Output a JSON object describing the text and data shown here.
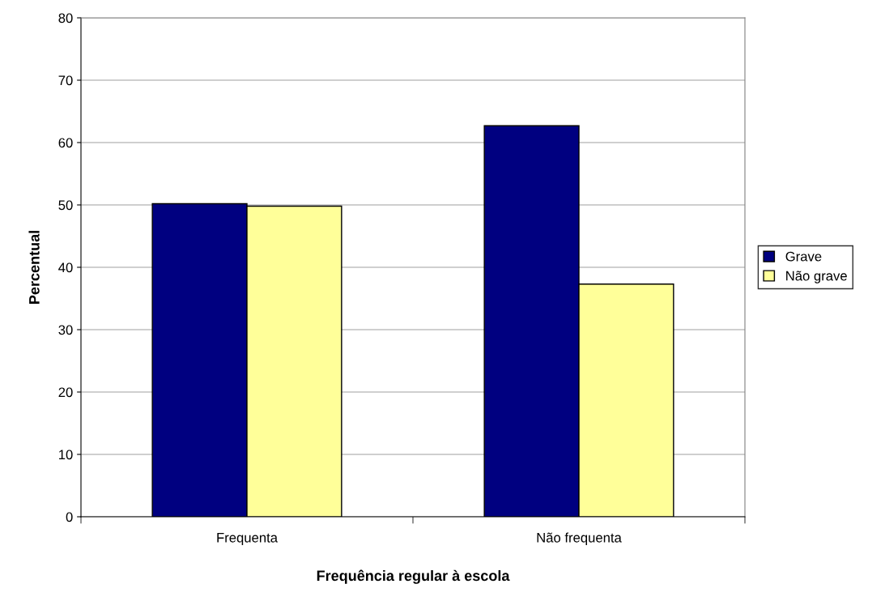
{
  "chart_data": {
    "type": "bar",
    "xlabel": "Frequência regular à escola",
    "ylabel": "Percentual",
    "categories": [
      "Frequenta",
      "Não frequenta"
    ],
    "series": [
      {
        "name": "Grave",
        "color": "#000080",
        "values": [
          50.2,
          62.7
        ]
      },
      {
        "name": "Não grave",
        "color": "#ffff99",
        "values": [
          49.8,
          37.3
        ]
      }
    ],
    "ylim": [
      0,
      80
    ],
    "yticks": [
      0,
      10,
      20,
      30,
      40,
      50,
      60,
      70,
      80
    ],
    "grid": "y",
    "legend": "right"
  }
}
